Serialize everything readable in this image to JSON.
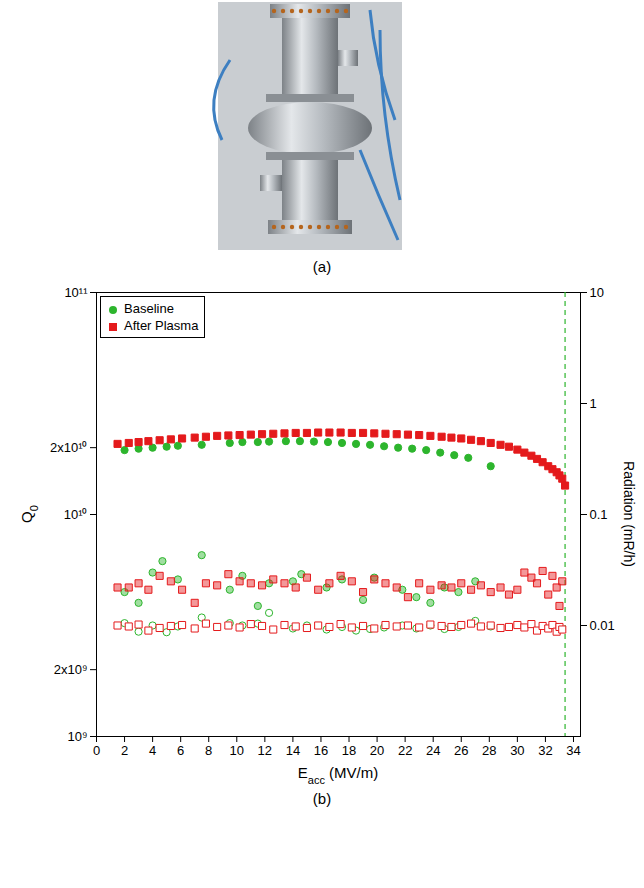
{
  "captions": [
    "(a)",
    "(b)"
  ],
  "chart_data": {
    "type": "scatter",
    "x_label": "Eacc (MV/m)",
    "y_label": "Q0",
    "y2_label": "Radiation (mR/h)",
    "xlim": [
      0,
      34.5
    ],
    "xticks": [
      0,
      2,
      4,
      6,
      8,
      10,
      12,
      14,
      16,
      18,
      20,
      22,
      24,
      26,
      28,
      30,
      32,
      34
    ],
    "ylim": [
      1000000000.0,
      100000000000.0
    ],
    "yticks": [
      {
        "value": 1000000000.0,
        "label": "10⁹"
      },
      {
        "value": 2000000000.0,
        "label": "2x10⁹"
      },
      {
        "value": 10000000000.0,
        "label": "10¹⁰"
      },
      {
        "value": 20000000000.0,
        "label": "2x10¹⁰"
      },
      {
        "value": 100000000000.0,
        "label": "10¹¹"
      }
    ],
    "y2lim": [
      0.001,
      10
    ],
    "y2ticks": [
      0.01,
      0.1,
      1,
      10
    ],
    "log": "y",
    "grid": false,
    "legend": "top-left",
    "vlines": [
      {
        "x": 33.4,
        "color": "#2db52d",
        "line_style": "dashed"
      }
    ],
    "series": [
      {
        "name": "Baseline",
        "color": "#2db52d",
        "marker": "circle",
        "axis": "y",
        "x": [
          2.0,
          3.0,
          4.0,
          5.0,
          5.8,
          7.5,
          9.5,
          10.4,
          11.5,
          12.3,
          13.5,
          14.5,
          15.5,
          16.5,
          17.5,
          18.5,
          19.5,
          20.5,
          21.5,
          22.5,
          23.5,
          24.5,
          25.5,
          26.5,
          28.1
        ],
        "values": [
          19500000000.0,
          19800000000.0,
          20000000000.0,
          20200000000.0,
          20400000000.0,
          20600000000.0,
          21000000000.0,
          21200000000.0,
          21200000000.0,
          21300000000.0,
          21400000000.0,
          21400000000.0,
          21300000000.0,
          21200000000.0,
          21000000000.0,
          20800000000.0,
          20600000000.0,
          20300000000.0,
          20000000000.0,
          19800000000.0,
          19500000000.0,
          19000000000.0,
          18500000000.0,
          18000000000.0,
          16500000000.0
        ]
      },
      {
        "name": "After Plasma",
        "color": "#e41a1c",
        "marker": "square",
        "axis": "y",
        "x": [
          1.5,
          2.3,
          3.0,
          3.7,
          4.5,
          5.3,
          6.1,
          7.0,
          7.8,
          8.6,
          9.4,
          10.2,
          11.0,
          11.8,
          12.6,
          13.4,
          14.2,
          15.0,
          15.8,
          16.6,
          17.4,
          18.2,
          19.0,
          19.8,
          20.6,
          21.4,
          22.2,
          23.0,
          23.8,
          24.6,
          25.3,
          26.0,
          26.7,
          27.4,
          28.1,
          28.8,
          29.4,
          30.0,
          30.5,
          31.0,
          31.4,
          31.8,
          32.2,
          32.5,
          32.8,
          33.0,
          33.2,
          33.4
        ],
        "values": [
          20800000000.0,
          21000000000.0,
          21200000000.0,
          21400000000.0,
          21600000000.0,
          21800000000.0,
          22000000000.0,
          22200000000.0,
          22400000000.0,
          22600000000.0,
          22700000000.0,
          22800000000.0,
          22900000000.0,
          23000000000.0,
          23100000000.0,
          23200000000.0,
          23300000000.0,
          23300000000.0,
          23400000000.0,
          23400000000.0,
          23400000000.0,
          23300000000.0,
          23300000000.0,
          23200000000.0,
          23100000000.0,
          23000000000.0,
          22900000000.0,
          22800000000.0,
          22600000000.0,
          22400000000.0,
          22200000000.0,
          22000000000.0,
          21700000000.0,
          21400000000.0,
          21000000000.0,
          20600000000.0,
          20200000000.0,
          19600000000.0,
          19000000000.0,
          18400000000.0,
          17800000000.0,
          17200000000.0,
          16500000000.0,
          16000000000.0,
          15500000000.0,
          15000000000.0,
          14500000000.0,
          13500000000.0
        ]
      },
      {
        "name": "Baseline",
        "color": "#2db52d",
        "marker": "circle-half",
        "axis": "y2",
        "x": [
          2.0,
          3.0,
          4.0,
          4.7,
          5.8,
          7.5,
          9.5,
          10.4,
          11.5,
          12.3,
          14.0,
          14.6,
          16.4,
          17.5,
          19.0,
          19.8,
          21.8,
          22.8,
          23.8,
          24.8,
          25.8,
          27.0
        ],
        "values": [
          0.02,
          0.016,
          0.03,
          0.038,
          0.026,
          0.043,
          0.021,
          0.028,
          0.015,
          0.024,
          0.025,
          0.029,
          0.022,
          0.026,
          0.017,
          0.027,
          0.021,
          0.018,
          0.016,
          0.022,
          0.02,
          0.025
        ]
      },
      {
        "name": "Baseline",
        "color": "#2db52d",
        "marker": "circle-open",
        "axis": "y2",
        "x": [
          2.0,
          3.0,
          4.0,
          5.0,
          5.8,
          7.5,
          9.5,
          10.4,
          11.5,
          12.3,
          14.0,
          15.0,
          16.4,
          17.5,
          18.5,
          19.5,
          20.5,
          21.8,
          22.8,
          23.8,
          24.8,
          25.8,
          27.0,
          28.1
        ],
        "values": [
          0.0105,
          0.0088,
          0.01,
          0.0087,
          0.0098,
          0.0118,
          0.0105,
          0.01,
          0.0104,
          0.013,
          0.0094,
          0.01,
          0.0092,
          0.0097,
          0.009,
          0.0093,
          0.0096,
          0.01,
          0.0094,
          0.01,
          0.0093,
          0.0097,
          0.011,
          0.0098
        ]
      },
      {
        "name": "After Plasma",
        "color": "#e41a1c",
        "marker": "square-half",
        "axis": "y2",
        "x": [
          1.5,
          2.3,
          3.0,
          3.7,
          4.5,
          5.3,
          6.1,
          7.0,
          7.8,
          8.6,
          9.4,
          10.2,
          11.0,
          11.8,
          12.6,
          13.4,
          14.2,
          15.0,
          15.8,
          16.6,
          17.4,
          18.2,
          19.0,
          19.8,
          20.6,
          21.4,
          22.2,
          23.0,
          23.8,
          24.6,
          25.3,
          26.0,
          26.7,
          27.4,
          28.1,
          28.8,
          29.4,
          30.0,
          30.5,
          31.0,
          31.4,
          31.8,
          32.2,
          32.5,
          32.8,
          33.0,
          33.2
        ],
        "values": [
          0.022,
          0.022,
          0.024,
          0.021,
          0.028,
          0.025,
          0.021,
          0.016,
          0.024,
          0.023,
          0.029,
          0.025,
          0.024,
          0.023,
          0.026,
          0.024,
          0.022,
          0.027,
          0.021,
          0.024,
          0.028,
          0.025,
          0.02,
          0.026,
          0.024,
          0.022,
          0.018,
          0.024,
          0.021,
          0.023,
          0.022,
          0.024,
          0.021,
          0.023,
          0.02,
          0.022,
          0.019,
          0.021,
          0.03,
          0.027,
          0.024,
          0.031,
          0.019,
          0.028,
          0.022,
          0.015,
          0.025
        ]
      },
      {
        "name": "After Plasma",
        "color": "#e41a1c",
        "marker": "square-open",
        "axis": "y2",
        "x": [
          1.5,
          2.3,
          3.0,
          3.7,
          4.5,
          5.3,
          6.1,
          7.0,
          7.8,
          8.6,
          9.4,
          10.2,
          11.0,
          11.8,
          12.6,
          13.4,
          14.2,
          15.0,
          15.8,
          16.6,
          17.4,
          18.2,
          19.0,
          19.8,
          20.6,
          21.4,
          22.2,
          23.0,
          23.8,
          24.6,
          25.3,
          26.0,
          26.7,
          27.4,
          28.1,
          28.8,
          29.4,
          30.0,
          30.5,
          31.0,
          31.4,
          31.8,
          32.2,
          32.5,
          32.8,
          33.0,
          33.2
        ],
        "values": [
          0.01,
          0.0098,
          0.0102,
          0.009,
          0.0095,
          0.0099,
          0.0101,
          0.0094,
          0.0104,
          0.0097,
          0.01,
          0.0096,
          0.0103,
          0.0099,
          0.0092,
          0.0101,
          0.0098,
          0.0095,
          0.01,
          0.0097,
          0.0103,
          0.0096,
          0.0099,
          0.0094,
          0.0101,
          0.0098,
          0.01,
          0.0096,
          0.0102,
          0.0099,
          0.0097,
          0.0101,
          0.0104,
          0.0098,
          0.01,
          0.0095,
          0.0097,
          0.0101,
          0.0096,
          0.0103,
          0.009,
          0.0099,
          0.0094,
          0.0101,
          0.0088,
          0.0097,
          0.0092
        ]
      }
    ]
  }
}
